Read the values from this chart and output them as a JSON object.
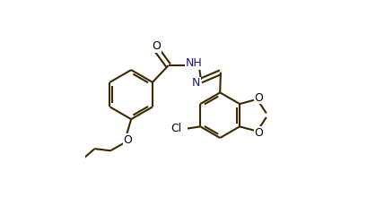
{
  "bg_color": "#ffffff",
  "bond_color": "#3a2800",
  "atom_color": "#000000",
  "n_color": "#1a1a7a",
  "line_width": 1.5,
  "figsize": [
    4.09,
    2.2
  ],
  "dpi": 100,
  "xlim": [
    0.0,
    1.0
  ],
  "ylim": [
    0.0,
    1.0
  ]
}
